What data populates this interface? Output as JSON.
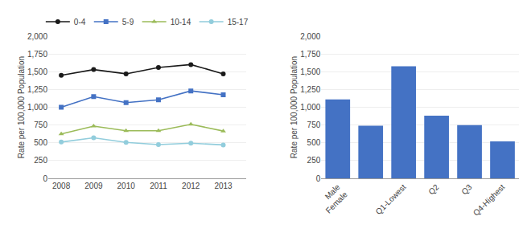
{
  "chart_data": [
    {
      "type": "line",
      "x": [
        2008,
        2009,
        2010,
        2011,
        2012,
        2013
      ],
      "series": [
        {
          "name": "0-4",
          "color": "#1a1a1a",
          "marker": "circle",
          "values": [
            1450,
            1530,
            1470,
            1560,
            1600,
            1470
          ]
        },
        {
          "name": "5-9",
          "color": "#4472c4",
          "marker": "square",
          "values": [
            1000,
            1150,
            1065,
            1105,
            1230,
            1175
          ]
        },
        {
          "name": "10-14",
          "color": "#9bbb59",
          "marker": "triangle-up",
          "values": [
            625,
            735,
            670,
            670,
            760,
            665
          ]
        },
        {
          "name": "15-17",
          "color": "#92cddc",
          "marker": "circle",
          "values": [
            510,
            570,
            505,
            475,
            495,
            470
          ]
        }
      ],
      "ylabel": "Rate per 100,000 Population",
      "xlim": [
        2007.6,
        2013.7
      ],
      "xticks": [
        2008,
        2009,
        2010,
        2011,
        2012,
        2013
      ],
      "ylim": [
        0,
        2000
      ],
      "yticks": [
        0,
        250,
        500,
        750,
        {
          "value": 1000,
          "label": "1,000"
        },
        {
          "value": 1250,
          "label": "1,250"
        },
        {
          "value": 1500,
          "label": "1,500"
        },
        {
          "value": 1750,
          "label": "1,750"
        },
        {
          "value": 2000,
          "label": "2,000"
        }
      ],
      "grid": true,
      "legend": "top"
    },
    {
      "type": "bar",
      "categories": [
        "Male\nFemale",
        null,
        "Q1-Lowest",
        "Q2",
        "Q3",
        "Q4-Highest"
      ],
      "values": [
        1110,
        740,
        1575,
        880,
        750,
        520
      ],
      "color": "#4472c4",
      "ylabel": "Rate per 100,000 Population",
      "ylim": [
        0,
        2000
      ],
      "yticks": [
        0,
        250,
        500,
        750,
        {
          "value": 1000,
          "label": "1,000"
        },
        {
          "value": 1250,
          "label": "1,250"
        },
        {
          "value": 1500,
          "label": "1,500"
        },
        {
          "value": 1750,
          "label": "1,750"
        },
        {
          "value": 2000,
          "label": "2,000"
        }
      ],
      "grid": true
    }
  ]
}
